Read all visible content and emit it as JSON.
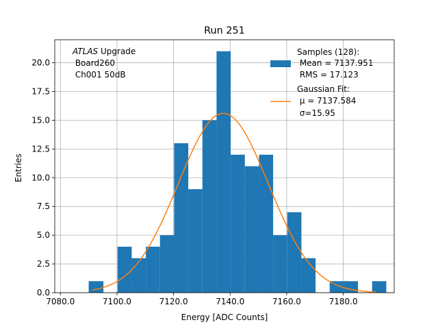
{
  "chart_data": {
    "type": "bar",
    "title": "Run 251",
    "xlabel": "Energy [ADC Counts]",
    "ylabel": "Entries",
    "xlim": [
      7078,
      7198
    ],
    "ylim": [
      0,
      22
    ],
    "grid": true,
    "xticks": [
      7080,
      7100,
      7120,
      7140,
      7160,
      7180
    ],
    "xtick_labels": [
      "7080.0",
      "7100.0",
      "7120.0",
      "7140.0",
      "7160.0",
      "7180.0"
    ],
    "yticks": [
      0,
      2.5,
      5,
      7.5,
      10,
      12.5,
      15,
      17.5,
      20
    ],
    "ytick_labels": [
      "0.0",
      "2.5",
      "5.0",
      "7.5",
      "10.0",
      "12.5",
      "15.0",
      "17.5",
      "20.0"
    ],
    "annotation": {
      "italic": "ATLAS",
      "rest": " Upgrade",
      "line2": " Board260",
      "line3": " Ch001 50dB"
    },
    "legend": {
      "placement": "upper right",
      "samples": {
        "line1": "Samples (128):",
        "line2": " Mean = 7137.951",
        "line3": " RMS = 17.123"
      },
      "fit": {
        "line1": "Gaussian Fit:",
        "line2": " μ = 7137.584",
        "line3": " σ=15.95"
      }
    },
    "histogram": {
      "name": "Samples (128)",
      "color": "#1f77b4",
      "bin_edges": [
        7090.0,
        7095.2,
        7100.2,
        7105.2,
        7110.2,
        7115.2,
        7120.2,
        7125.2,
        7130.2,
        7135.2,
        7140.2,
        7145.2,
        7150.2,
        7155.2,
        7160.2,
        7165.2,
        7170.2,
        7175.2,
        7180.2,
        7185.2,
        7190.2,
        7195.2
      ],
      "counts": [
        1,
        0,
        4,
        3,
        4,
        5,
        13,
        9,
        15,
        21,
        12,
        11,
        12,
        5,
        7,
        3,
        0,
        1,
        1,
        0,
        1
      ]
    },
    "fit": {
      "name": "Gaussian Fit",
      "color": "#ff7f0e",
      "mu": 7137.584,
      "sigma": 15.95,
      "amplitude": 15.6,
      "x_range": [
        7091.2,
        7191.6
      ]
    }
  }
}
